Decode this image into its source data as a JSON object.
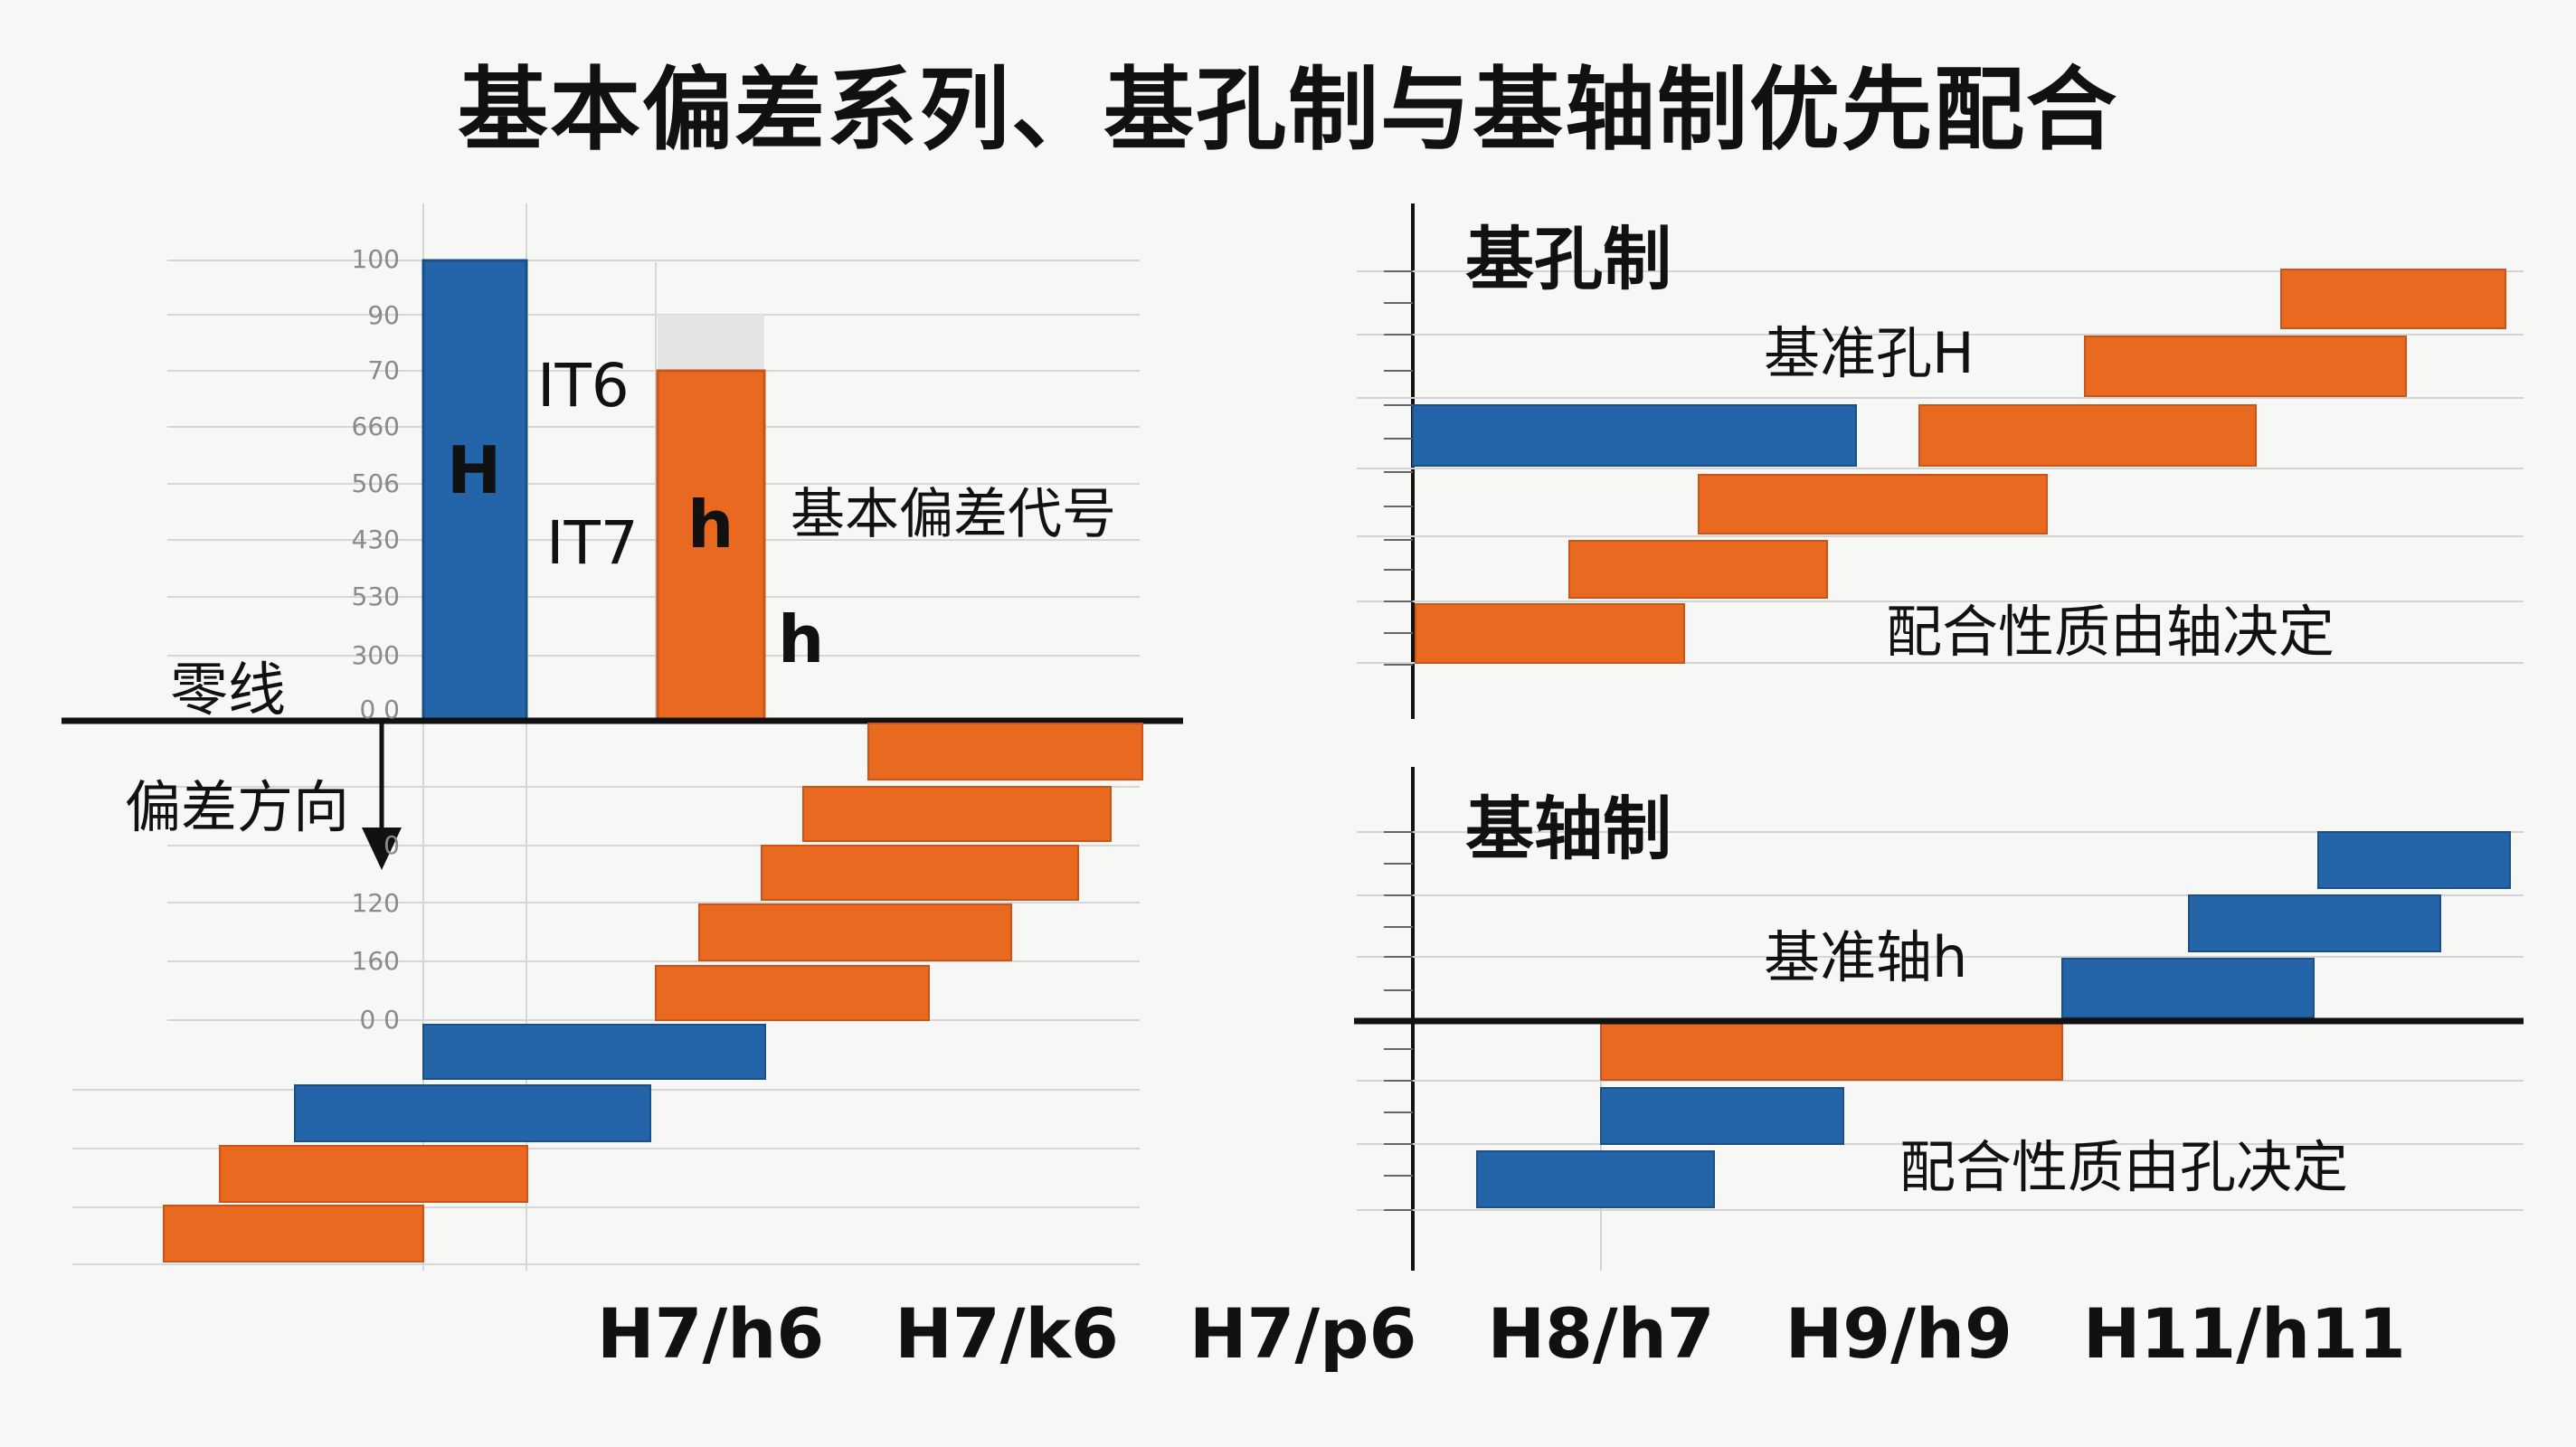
{
  "title": "基本偏差系列、基孔制与基轴制优先配合",
  "colors": {
    "hole_blue": "#2464a8",
    "shaft_orange": "#e8691f",
    "grid": "#d4d4d4",
    "axis": "#111111"
  },
  "left_panel": {
    "zero_line_label": "零线",
    "deviation_direction_label": "偏差方向",
    "hole_symbol": "H",
    "shaft_symbol": "h",
    "shaft_symbol_side": "h",
    "it6_label": "IT6",
    "it7_label": "IT7",
    "fundamental_deviation_label": "基本偏差代号",
    "upper_ticks": [
      "100",
      "90",
      "70",
      "660",
      "506",
      "430",
      "530",
      "300",
      "0 0"
    ],
    "lower_ticks": [
      "0",
      "120",
      "160",
      "0 0"
    ]
  },
  "hole_basis_panel": {
    "title": "基孔制",
    "base_label": "基准孔H",
    "note": "配合性质由轴决定"
  },
  "shaft_basis_panel": {
    "title": "基轴制",
    "base_label": "基准轴h",
    "note": "配合性质由孔决定"
  },
  "preferred_fits": [
    "H7/h6",
    "H7/k6",
    "H7/p6",
    "H8/h7",
    "H9/h9",
    "H11/h11"
  ]
}
